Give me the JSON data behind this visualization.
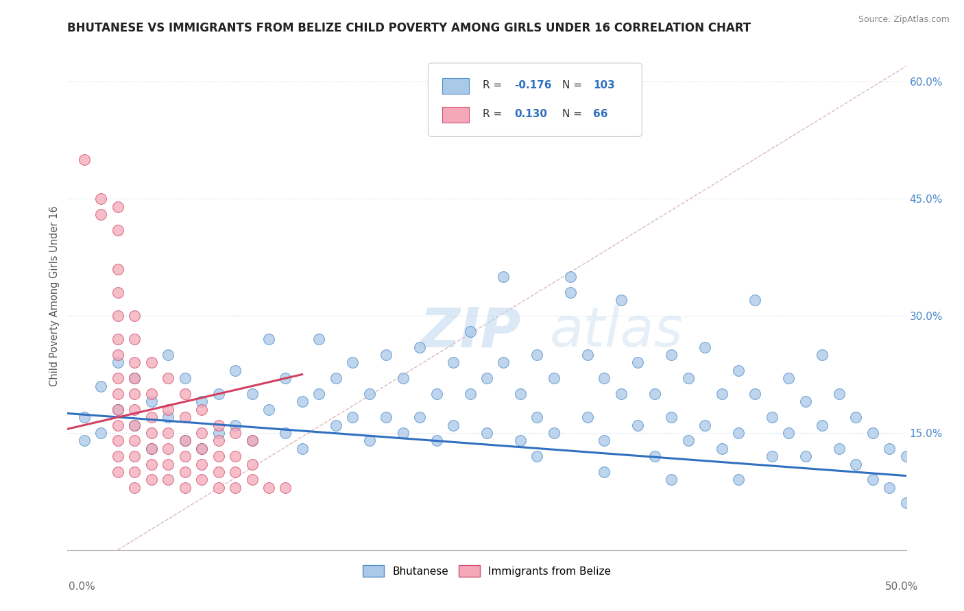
{
  "title": "BHUTANESE VS IMMIGRANTS FROM BELIZE CHILD POVERTY AMONG GIRLS UNDER 16 CORRELATION CHART",
  "source": "Source: ZipAtlas.com",
  "ylabel": "Child Poverty Among Girls Under 16",
  "xmin": 0.0,
  "xmax": 0.5,
  "ymin": 0.0,
  "ymax": 0.65,
  "yticks": [
    0.15,
    0.3,
    0.45,
    0.6
  ],
  "ytick_labels": [
    "15.0%",
    "30.0%",
    "45.0%",
    "60.0%"
  ],
  "blue_R": -0.176,
  "blue_N": 103,
  "pink_R": 0.13,
  "pink_N": 66,
  "blue_color": "#aac8e8",
  "pink_color": "#f4a8b8",
  "blue_edge_color": "#5090c8",
  "pink_edge_color": "#d05070",
  "blue_line_color": "#3070c0",
  "pink_line_color": "#d04060",
  "ref_line_color": "#d8b0b8",
  "legend_label_blue": "Bhutanese",
  "legend_label_pink": "Immigrants from Belize",
  "watermark": "ZIPatlas",
  "blue_scatter": [
    [
      0.01,
      0.17
    ],
    [
      0.01,
      0.14
    ],
    [
      0.02,
      0.21
    ],
    [
      0.02,
      0.15
    ],
    [
      0.03,
      0.24
    ],
    [
      0.03,
      0.18
    ],
    [
      0.04,
      0.22
    ],
    [
      0.04,
      0.16
    ],
    [
      0.05,
      0.19
    ],
    [
      0.05,
      0.13
    ],
    [
      0.06,
      0.25
    ],
    [
      0.06,
      0.17
    ],
    [
      0.07,
      0.22
    ],
    [
      0.07,
      0.14
    ],
    [
      0.08,
      0.19
    ],
    [
      0.08,
      0.13
    ],
    [
      0.09,
      0.2
    ],
    [
      0.09,
      0.15
    ],
    [
      0.1,
      0.23
    ],
    [
      0.1,
      0.16
    ],
    [
      0.11,
      0.2
    ],
    [
      0.11,
      0.14
    ],
    [
      0.12,
      0.27
    ],
    [
      0.12,
      0.18
    ],
    [
      0.13,
      0.22
    ],
    [
      0.13,
      0.15
    ],
    [
      0.14,
      0.19
    ],
    [
      0.14,
      0.13
    ],
    [
      0.15,
      0.27
    ],
    [
      0.15,
      0.2
    ],
    [
      0.16,
      0.22
    ],
    [
      0.16,
      0.16
    ],
    [
      0.17,
      0.24
    ],
    [
      0.17,
      0.17
    ],
    [
      0.18,
      0.2
    ],
    [
      0.18,
      0.14
    ],
    [
      0.19,
      0.25
    ],
    [
      0.19,
      0.17
    ],
    [
      0.2,
      0.22
    ],
    [
      0.2,
      0.15
    ],
    [
      0.21,
      0.26
    ],
    [
      0.21,
      0.17
    ],
    [
      0.22,
      0.2
    ],
    [
      0.22,
      0.14
    ],
    [
      0.23,
      0.24
    ],
    [
      0.23,
      0.16
    ],
    [
      0.24,
      0.28
    ],
    [
      0.24,
      0.2
    ],
    [
      0.25,
      0.22
    ],
    [
      0.25,
      0.15
    ],
    [
      0.26,
      0.35
    ],
    [
      0.26,
      0.24
    ],
    [
      0.27,
      0.2
    ],
    [
      0.27,
      0.14
    ],
    [
      0.28,
      0.25
    ],
    [
      0.28,
      0.17
    ],
    [
      0.29,
      0.22
    ],
    [
      0.29,
      0.15
    ],
    [
      0.3,
      0.35
    ],
    [
      0.3,
      0.33
    ],
    [
      0.31,
      0.25
    ],
    [
      0.31,
      0.17
    ],
    [
      0.32,
      0.22
    ],
    [
      0.32,
      0.14
    ],
    [
      0.33,
      0.32
    ],
    [
      0.33,
      0.2
    ],
    [
      0.34,
      0.24
    ],
    [
      0.34,
      0.16
    ],
    [
      0.35,
      0.2
    ],
    [
      0.35,
      0.12
    ],
    [
      0.36,
      0.25
    ],
    [
      0.36,
      0.17
    ],
    [
      0.37,
      0.22
    ],
    [
      0.37,
      0.14
    ],
    [
      0.38,
      0.26
    ],
    [
      0.38,
      0.16
    ],
    [
      0.39,
      0.2
    ],
    [
      0.39,
      0.13
    ],
    [
      0.4,
      0.23
    ],
    [
      0.4,
      0.15
    ],
    [
      0.41,
      0.32
    ],
    [
      0.41,
      0.2
    ],
    [
      0.42,
      0.17
    ],
    [
      0.42,
      0.12
    ],
    [
      0.43,
      0.22
    ],
    [
      0.43,
      0.15
    ],
    [
      0.44,
      0.19
    ],
    [
      0.44,
      0.12
    ],
    [
      0.45,
      0.25
    ],
    [
      0.45,
      0.16
    ],
    [
      0.46,
      0.2
    ],
    [
      0.46,
      0.13
    ],
    [
      0.47,
      0.17
    ],
    [
      0.47,
      0.11
    ],
    [
      0.48,
      0.15
    ],
    [
      0.48,
      0.09
    ],
    [
      0.49,
      0.13
    ],
    [
      0.49,
      0.08
    ],
    [
      0.5,
      0.12
    ],
    [
      0.5,
      0.06
    ],
    [
      0.28,
      0.12
    ],
    [
      0.32,
      0.1
    ],
    [
      0.36,
      0.09
    ],
    [
      0.4,
      0.09
    ]
  ],
  "pink_scatter": [
    [
      0.01,
      0.5
    ],
    [
      0.02,
      0.45
    ],
    [
      0.02,
      0.43
    ],
    [
      0.03,
      0.44
    ],
    [
      0.03,
      0.41
    ],
    [
      0.03,
      0.36
    ],
    [
      0.03,
      0.33
    ],
    [
      0.03,
      0.3
    ],
    [
      0.03,
      0.27
    ],
    [
      0.03,
      0.25
    ],
    [
      0.03,
      0.22
    ],
    [
      0.03,
      0.2
    ],
    [
      0.03,
      0.18
    ],
    [
      0.03,
      0.16
    ],
    [
      0.03,
      0.14
    ],
    [
      0.03,
      0.12
    ],
    [
      0.03,
      0.1
    ],
    [
      0.04,
      0.3
    ],
    [
      0.04,
      0.27
    ],
    [
      0.04,
      0.24
    ],
    [
      0.04,
      0.22
    ],
    [
      0.04,
      0.2
    ],
    [
      0.04,
      0.18
    ],
    [
      0.04,
      0.16
    ],
    [
      0.04,
      0.14
    ],
    [
      0.04,
      0.12
    ],
    [
      0.04,
      0.1
    ],
    [
      0.04,
      0.08
    ],
    [
      0.05,
      0.24
    ],
    [
      0.05,
      0.2
    ],
    [
      0.05,
      0.17
    ],
    [
      0.05,
      0.15
    ],
    [
      0.05,
      0.13
    ],
    [
      0.05,
      0.11
    ],
    [
      0.05,
      0.09
    ],
    [
      0.06,
      0.22
    ],
    [
      0.06,
      0.18
    ],
    [
      0.06,
      0.15
    ],
    [
      0.06,
      0.13
    ],
    [
      0.06,
      0.11
    ],
    [
      0.06,
      0.09
    ],
    [
      0.07,
      0.2
    ],
    [
      0.07,
      0.17
    ],
    [
      0.07,
      0.14
    ],
    [
      0.07,
      0.12
    ],
    [
      0.07,
      0.1
    ],
    [
      0.07,
      0.08
    ],
    [
      0.08,
      0.18
    ],
    [
      0.08,
      0.15
    ],
    [
      0.08,
      0.13
    ],
    [
      0.08,
      0.11
    ],
    [
      0.08,
      0.09
    ],
    [
      0.09,
      0.16
    ],
    [
      0.09,
      0.14
    ],
    [
      0.09,
      0.12
    ],
    [
      0.09,
      0.1
    ],
    [
      0.09,
      0.08
    ],
    [
      0.1,
      0.15
    ],
    [
      0.1,
      0.12
    ],
    [
      0.1,
      0.1
    ],
    [
      0.1,
      0.08
    ],
    [
      0.11,
      0.14
    ],
    [
      0.11,
      0.11
    ],
    [
      0.11,
      0.09
    ],
    [
      0.12,
      0.08
    ],
    [
      0.13,
      0.08
    ]
  ],
  "blue_trend_x": [
    0.0,
    0.5
  ],
  "blue_trend_y": [
    0.175,
    0.095
  ],
  "pink_trend_x": [
    0.0,
    0.14
  ],
  "pink_trend_y": [
    0.155,
    0.225
  ],
  "ref_line_x": [
    0.03,
    0.5
  ],
  "ref_line_y": [
    0.0,
    0.62
  ]
}
